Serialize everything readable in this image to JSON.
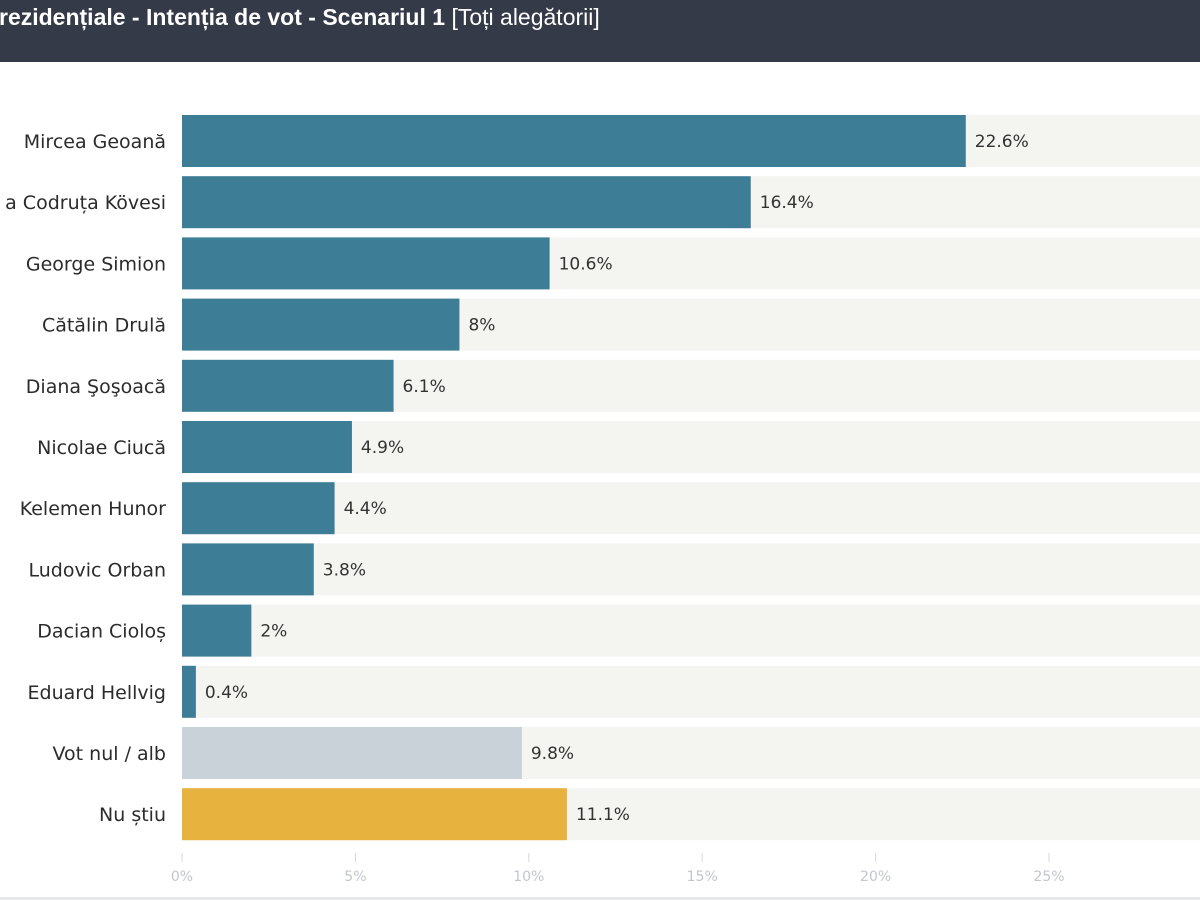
{
  "header": {
    "title_main": "rezidențiale - Intenția de vot - Scenariul 1",
    "title_sub": "[Toți alegătorii]"
  },
  "colors": {
    "header_bg": "#343a48",
    "candidate": "#3e7d96",
    "null_vote": "#c9d1d9",
    "dont_know": "#e8b23e",
    "track": "#f4f4f1"
  },
  "chart_data": {
    "type": "bar",
    "orientation": "horizontal",
    "categories": [
      "Mircea Geoană",
      "a Codruța Kövesi",
      "George Simion",
      "Cătălin Drulă",
      "Diana Şoşoacă",
      "Nicolae Ciucă",
      "Kelemen Hunor",
      "Ludovic Orban",
      "Dacian Cioloș",
      "Eduard Hellvig",
      "Vot nul / alb",
      "Nu știu"
    ],
    "values": [
      22.6,
      16.4,
      10.6,
      8,
      6.1,
      4.9,
      4.4,
      3.8,
      2,
      0.4,
      9.8,
      11.1
    ],
    "value_labels": [
      "22.6%",
      "16.4%",
      "10.6%",
      "8%",
      "6.1%",
      "4.9%",
      "4.4%",
      "3.8%",
      "2%",
      "0.4%",
      "9.8%",
      "11.1%"
    ],
    "bar_colors": [
      "#3e7d96",
      "#3e7d96",
      "#3e7d96",
      "#3e7d96",
      "#3e7d96",
      "#3e7d96",
      "#3e7d96",
      "#3e7d96",
      "#3e7d96",
      "#3e7d96",
      "#c9d1d9",
      "#e8b23e"
    ],
    "xticks": [
      0,
      5,
      10,
      15,
      20,
      25
    ],
    "xtick_labels": [
      "0%",
      "5%",
      "10%",
      "15%",
      "20%",
      "25%"
    ],
    "xlim": [
      0,
      29.5
    ],
    "grid": false,
    "legend": "none"
  }
}
